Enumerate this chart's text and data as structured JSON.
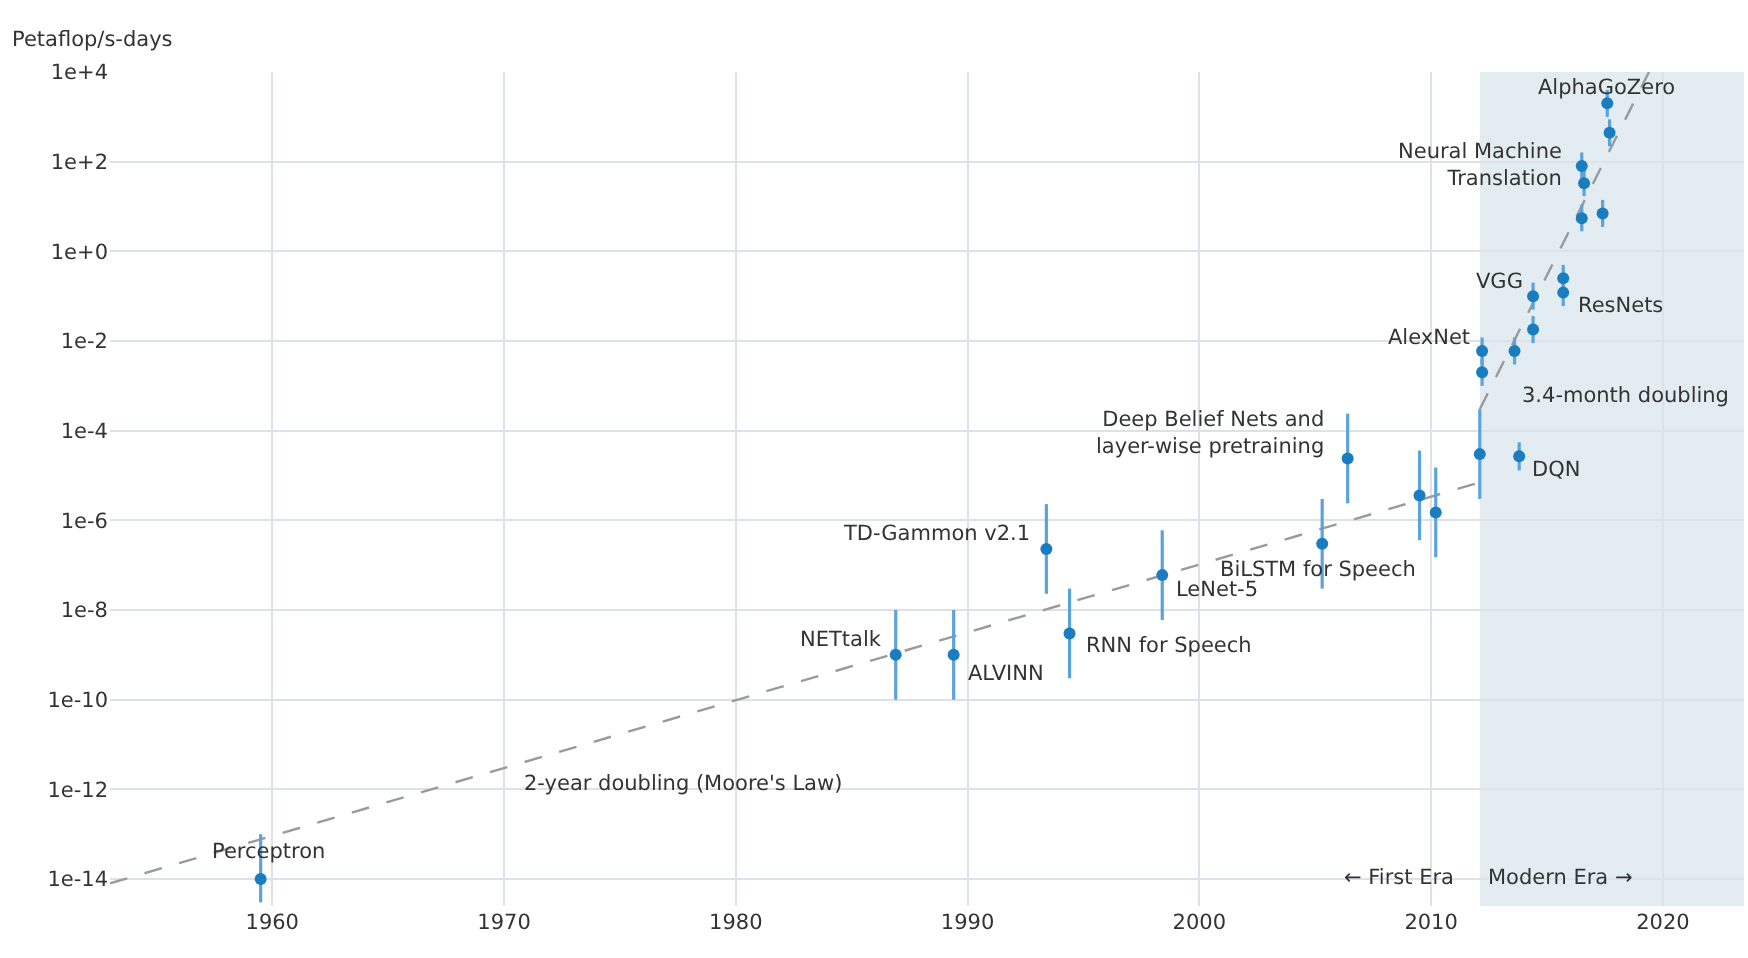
{
  "chart_data": {
    "type": "scatter",
    "ylabel": "Petaflop/s-days",
    "xlim": [
      1953,
      2023.5
    ],
    "xticks": [
      1960,
      1970,
      1980,
      1990,
      2000,
      2010,
      2020
    ],
    "ylim": [
      2.5e-15,
      10000
    ],
    "log": "y",
    "yticks": [
      {
        "value": 10000,
        "label": "1e+4"
      },
      {
        "value": 100,
        "label": "1e+2"
      },
      {
        "value": 1,
        "label": "1e+0"
      },
      {
        "value": 0.01,
        "label": "1e-2"
      },
      {
        "value": 0.0001,
        "label": "1e-4"
      },
      {
        "value": 1e-06,
        "label": "1e-6"
      },
      {
        "value": 1e-08,
        "label": "1e-8"
      },
      {
        "value": 1e-10,
        "label": "1e-10"
      },
      {
        "value": 1e-12,
        "label": "1e-12"
      },
      {
        "value": 1e-14,
        "label": "1e-14"
      }
    ],
    "grid": true,
    "marker": "circle",
    "series": [
      {
        "type": "line",
        "color": "#9a9a9a",
        "line_style": "dashed",
        "marker": "none",
        "x": [
          1953,
          2012.1
        ],
        "values": [
          8e-15,
          7e-06
        ]
      },
      {
        "type": "line",
        "color": "#9a9a9a",
        "line_style": "dashed",
        "marker": "none",
        "x": [
          2012.1,
          2019.4
        ],
        "values": [
          0.0003,
          10000
        ]
      },
      {
        "color": "#1a7dc0",
        "x": [
          1959.5,
          1986.9,
          1989.4,
          1993.4,
          1994.4,
          1998.4,
          2005.3,
          2006.4,
          2009.5,
          2010.2,
          2012.1,
          2012.2,
          2012.2,
          2013.6,
          2013.8,
          2014.4,
          2014.4,
          2015.7,
          2015.7,
          2016.5,
          2016.6,
          2016.5,
          2017.4,
          2017.7,
          2017.6
        ],
        "values": [
          1e-14,
          1e-09,
          1e-09,
          2.3e-07,
          3e-09,
          6e-08,
          3e-07,
          2.4e-05,
          3.6e-06,
          1.5e-06,
          3e-05,
          0.002,
          0.006,
          0.006,
          2.7e-05,
          0.018,
          0.1,
          0.12,
          0.25,
          5.5,
          33,
          80,
          7,
          440,
          2000
        ],
        "errors": [
          [
            3e-15,
            1e-13
          ],
          [
            1e-10,
            1e-08
          ],
          [
            1e-10,
            1e-08
          ],
          [
            2.3e-08,
            2.3e-06
          ],
          [
            3e-10,
            3e-08
          ],
          [
            6e-09,
            6e-07
          ],
          [
            3e-08,
            3e-06
          ],
          [
            2.4e-06,
            0.00024
          ],
          [
            3.6e-07,
            3.6e-05
          ],
          [
            1.5e-07,
            1.5e-05
          ],
          [
            3e-06,
            0.0003
          ],
          [
            0.001,
            0.004
          ],
          [
            0.003,
            0.012
          ],
          [
            0.003,
            0.012
          ],
          [
            1.3e-05,
            5.5e-05
          ],
          [
            0.009,
            0.036
          ],
          [
            0.05,
            0.2
          ],
          [
            0.06,
            0.24
          ],
          [
            0.13,
            0.5
          ],
          [
            2.8,
            11
          ],
          [
            17,
            66
          ],
          [
            40,
            160
          ],
          [
            3.5,
            14
          ],
          [
            220,
            880
          ],
          [
            1000,
            4000
          ]
        ]
      }
    ],
    "bands": [
      {
        "axis": "x",
        "from": 2012.1,
        "to": 2023.5,
        "color": "#e3edf1"
      }
    ],
    "annotations": [
      {
        "text": "Perceptron",
        "x": 1959.5,
        "y": 1e-14
      },
      {
        "text": "NETtalk",
        "x": 1986.9,
        "y": 1e-09
      },
      {
        "text": "ALVINN",
        "x": 1989.4,
        "y": 1e-09
      },
      {
        "text": "TD-Gammon v2.1",
        "x": 1993.4,
        "y": 2.3e-07
      },
      {
        "text": "RNN for Speech",
        "x": 1994.4,
        "y": 3e-09
      },
      {
        "text": "LeNet-5",
        "x": 1998.4,
        "y": 6e-08
      },
      {
        "text": "BiLSTM for Speech",
        "x": 2005.3,
        "y": 3e-07
      },
      {
        "text": "Deep Belief Nets and\nlayer-wise pretraining",
        "x": 2006.4,
        "y": 2.4e-05
      },
      {
        "text": "DQN",
        "x": 2013.8,
        "y": 2.7e-05
      },
      {
        "text": "3.4-month doubling",
        "x": 2012.6,
        "y": 0.001
      },
      {
        "text": "AlexNet",
        "x": 2012.2,
        "y": 0.006
      },
      {
        "text": "VGG",
        "x": 2014.4,
        "y": 0.1
      },
      {
        "text": "ResNets",
        "x": 2015.7,
        "y": 0.12
      },
      {
        "text": "Neural Machine\nTranslation",
        "x": 2016.5,
        "y": 80
      },
      {
        "text": "AlphaGoZero",
        "x": 2017.6,
        "y": 2000
      },
      {
        "text": "2-year doubling (Moore's Law)",
        "x": 1977.7,
        "y": 4.4e-11
      },
      {
        "text": "← First Era",
        "x": 2012.1
      },
      {
        "text": "Modern Era →",
        "x": 2012.1
      }
    ]
  }
}
